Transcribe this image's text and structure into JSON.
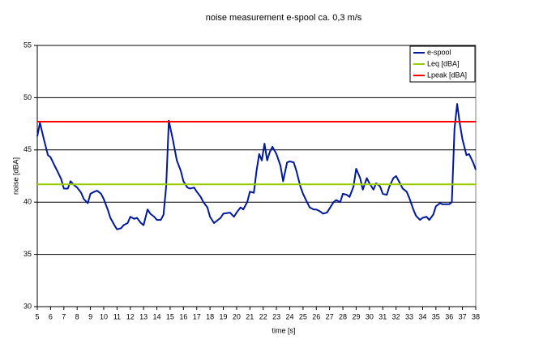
{
  "chart_data": {
    "type": "line",
    "title": "noise measurement e-spool ca. 0,3 m/s",
    "x_label": "time [s]",
    "y_label": "noise [dBA]",
    "xlim": [
      5,
      38
    ],
    "xticks": [
      5,
      6,
      7,
      8,
      9,
      10,
      11,
      12,
      13,
      14,
      15,
      16,
      17,
      18,
      19,
      20,
      21,
      22,
      23,
      24,
      25,
      26,
      27,
      28,
      29,
      30,
      31,
      32,
      33,
      34,
      35,
      36,
      37,
      38
    ],
    "ylim": [
      30,
      55
    ],
    "yticks": [
      30,
      35,
      40,
      45,
      50,
      55
    ],
    "grid": true,
    "legend": "top-right",
    "series": [
      {
        "name": "e-spool",
        "color": "#00189c",
        "x": [
          5.0,
          5.2,
          5.5,
          5.8,
          6.0,
          6.3,
          6.5,
          6.8,
          7.0,
          7.3,
          7.5,
          7.8,
          8.0,
          8.3,
          8.5,
          8.8,
          9.0,
          9.3,
          9.5,
          9.8,
          10.0,
          10.3,
          10.5,
          10.8,
          11.0,
          11.3,
          11.5,
          11.8,
          12.0,
          12.3,
          12.5,
          12.8,
          13.0,
          13.3,
          13.5,
          13.8,
          14.0,
          14.3,
          14.5,
          14.7,
          14.9,
          15.2,
          15.5,
          15.8,
          16.0,
          16.3,
          16.5,
          16.8,
          17.0,
          17.3,
          17.5,
          17.8,
          18.0,
          18.3,
          18.5,
          18.8,
          19.0,
          19.5,
          19.8,
          20.0,
          20.3,
          20.5,
          20.8,
          21.0,
          21.3,
          21.5,
          21.7,
          21.9,
          22.1,
          22.3,
          22.5,
          22.7,
          23.0,
          23.3,
          23.5,
          23.8,
          24.0,
          24.3,
          24.5,
          24.8,
          25.0,
          25.3,
          25.5,
          25.8,
          26.0,
          26.3,
          26.5,
          26.8,
          27.0,
          27.3,
          27.5,
          27.8,
          28.0,
          28.3,
          28.5,
          28.8,
          29.0,
          29.3,
          29.5,
          29.8,
          30.0,
          30.3,
          30.5,
          30.8,
          31.0,
          31.3,
          31.5,
          31.8,
          32.0,
          32.3,
          32.5,
          32.8,
          33.0,
          33.3,
          33.5,
          33.8,
          34.0,
          34.3,
          34.5,
          34.8,
          35.0,
          35.3,
          35.5,
          35.8,
          36.0,
          36.2,
          36.4,
          36.6,
          36.8,
          37.0,
          37.3,
          37.5,
          37.8,
          38.0
        ],
        "values": [
          46.3,
          47.6,
          46.0,
          44.5,
          44.3,
          43.5,
          43.0,
          42.2,
          41.3,
          41.3,
          42.0,
          41.6,
          41.4,
          40.9,
          40.3,
          39.9,
          40.8,
          41.0,
          41.1,
          40.8,
          40.3,
          39.3,
          38.5,
          37.8,
          37.4,
          37.5,
          37.8,
          38.0,
          38.6,
          38.4,
          38.5,
          38.0,
          37.8,
          39.3,
          38.9,
          38.6,
          38.3,
          38.3,
          38.8,
          41.5,
          47.8,
          46.0,
          44.0,
          43.0,
          42.0,
          41.4,
          41.3,
          41.4,
          41.0,
          40.5,
          40.0,
          39.5,
          38.6,
          38.0,
          38.2,
          38.5,
          38.9,
          39.0,
          38.6,
          39.0,
          39.5,
          39.3,
          40.0,
          41.0,
          40.9,
          43.0,
          44.6,
          44.0,
          45.6,
          44.0,
          44.8,
          45.3,
          44.6,
          43.5,
          42.0,
          43.8,
          43.9,
          43.8,
          43.0,
          41.5,
          40.8,
          40.0,
          39.5,
          39.3,
          39.3,
          39.1,
          38.9,
          39.0,
          39.4,
          40.0,
          40.2,
          40.0,
          40.8,
          40.7,
          40.5,
          41.5,
          43.2,
          42.3,
          41.2,
          42.3,
          41.8,
          41.2,
          41.8,
          41.5,
          40.8,
          40.7,
          41.5,
          42.3,
          42.5,
          41.8,
          41.3,
          41.0,
          40.4,
          39.3,
          38.7,
          38.3,
          38.5,
          38.6,
          38.3,
          38.8,
          39.6,
          39.9,
          39.8,
          39.8,
          39.8,
          40.0,
          47.0,
          49.4,
          47.5,
          46.0,
          44.5,
          44.6,
          43.8,
          43.1
        ]
      },
      {
        "name": "Leq [dBA]",
        "color": "#99cc00",
        "x": [
          5,
          38
        ],
        "values": [
          41.7,
          41.7
        ]
      },
      {
        "name": "Lpeak [dBA]",
        "color": "#ff0000",
        "x": [
          5,
          38
        ],
        "values": [
          47.7,
          47.7
        ]
      }
    ]
  }
}
